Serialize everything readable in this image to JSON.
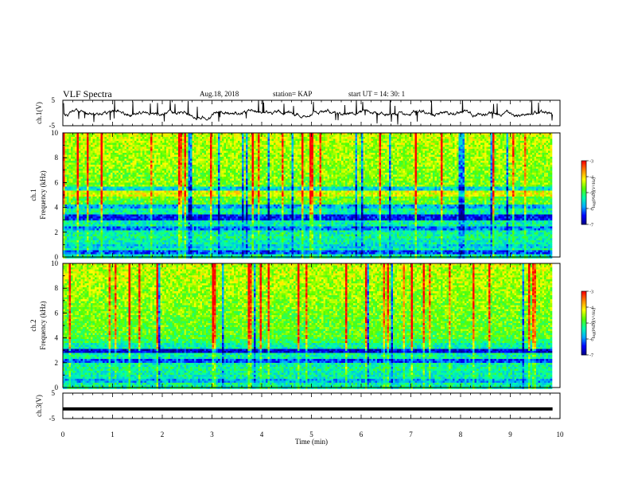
{
  "header": {
    "title": "VLF Spectra",
    "date": "Aug.18, 2018",
    "station": "station= KAP",
    "start": "start  UT =   14: 30: 1"
  },
  "chart_data": [
    {
      "type": "line",
      "panel": "ch1-waveform",
      "ylabel": "ch.1(V)",
      "yticks": [
        "5",
        "-5"
      ],
      "ylim": [
        -5,
        5
      ],
      "color": "#000000",
      "description_values": "noisy envelope around -1..1 V with spikes to +5",
      "xlim": [
        0,
        10
      ],
      "approx_x_end": 9.85
    },
    {
      "type": "heatmap",
      "panel": "ch1-spectrogram",
      "ylabel_top": "ch.1",
      "ylabel": "Frequency (kHz)",
      "yticks": [
        "0",
        "2",
        "4",
        "6",
        "8",
        "10"
      ],
      "ylim": [
        0,
        10
      ],
      "xlim": [
        0,
        10
      ],
      "colorbar": {
        "label": "log(PSD)(V²/Hz)",
        "ticks": [
          "-3",
          "-4",
          "-5",
          "-6",
          "-7"
        ],
        "range": [
          -7,
          -3
        ]
      },
      "bands": [
        {
          "f": 0.4,
          "level": 0.2
        },
        {
          "f": 0.9,
          "level": 0.35
        },
        {
          "f": 1.7,
          "level": 0.45
        },
        {
          "f": 2.3,
          "level": 0.25
        },
        {
          "f": 3.2,
          "level": 0.15
        },
        {
          "f": 4.1,
          "level": 0.3
        },
        {
          "f": 5.1,
          "level": 0.7
        },
        {
          "f": 5.5,
          "level": 0.35
        }
      ]
    },
    {
      "type": "heatmap",
      "panel": "ch2-spectrogram",
      "ylabel_top": "ch.2",
      "ylabel": "Frequency (kHz)",
      "yticks": [
        "0",
        "2",
        "4",
        "6",
        "8",
        "10"
      ],
      "ylim": [
        0,
        10
      ],
      "xlim": [
        0,
        10
      ],
      "colorbar": {
        "label": "log(PSD)(V²/Hz)",
        "ticks": [
          "-3",
          "-4",
          "-5",
          "-6",
          "-7"
        ],
        "range": [
          -7,
          -3
        ]
      },
      "bands": [
        {
          "f": 0.5,
          "level": 0.3
        },
        {
          "f": 1.5,
          "level": 0.45
        },
        {
          "f": 2.1,
          "level": 0.2
        },
        {
          "f": 3.0,
          "level": 0.1
        },
        {
          "f": 3.7,
          "level": 0.5
        },
        {
          "f": 4.1,
          "level": 0.55
        }
      ]
    },
    {
      "type": "line",
      "panel": "ch3-waveform",
      "ylabel": "ch.3(V)",
      "yticks": [
        "5",
        "-5"
      ],
      "ylim": [
        -5,
        5
      ],
      "constant_value": -1.2,
      "xlim": [
        0,
        10
      ],
      "approx_x_end": 9.85
    }
  ],
  "x_axis": {
    "label": "Time (min)",
    "ticks": [
      "0",
      "1",
      "2",
      "3",
      "4",
      "5",
      "6",
      "7",
      "8",
      "9",
      "10"
    ],
    "range": [
      0,
      10
    ]
  },
  "colors": {
    "colormap": [
      "#000080",
      "#0000ff",
      "#00aaff",
      "#00ffaa",
      "#55ff00",
      "#ffff00",
      "#ff8800",
      "#ff0000",
      "#ffffff"
    ]
  }
}
